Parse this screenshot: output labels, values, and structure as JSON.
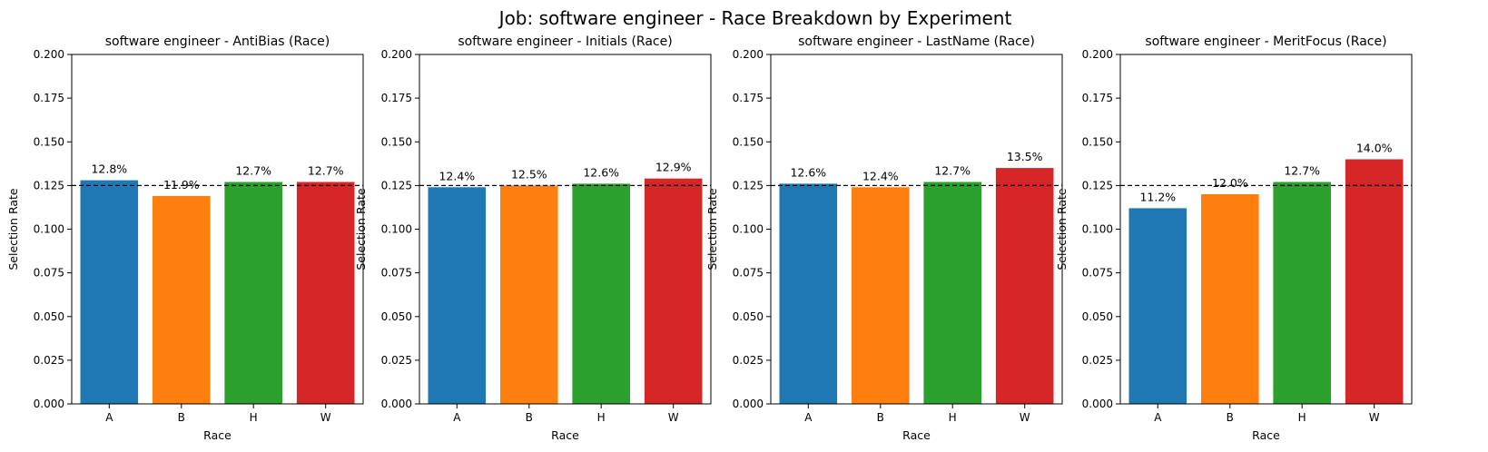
{
  "figure": {
    "suptitle": "Job: software engineer - Race Breakdown by Experiment"
  },
  "colors": {
    "A": "#1f77b4",
    "B": "#ff7f0e",
    "H": "#2ca02c",
    "W": "#d62728",
    "reference_line": "#000000"
  },
  "chart_data": [
    {
      "type": "bar",
      "title": "software engineer - AntiBias (Race)",
      "xlabel": "Race",
      "ylabel": "Selection Rate",
      "categories": [
        "A",
        "B",
        "H",
        "W"
      ],
      "values": [
        0.128,
        0.119,
        0.127,
        0.127
      ],
      "data_labels": [
        "12.8%",
        "11.9%",
        "12.7%",
        "12.7%"
      ],
      "ylim": [
        0,
        0.2
      ],
      "yticks": [
        "0.000",
        "0.025",
        "0.050",
        "0.075",
        "0.100",
        "0.125",
        "0.150",
        "0.175",
        "0.200"
      ],
      "reference_line": 0.125,
      "grid": false
    },
    {
      "type": "bar",
      "title": "software engineer - Initials (Race)",
      "xlabel": "Race",
      "ylabel": "Selection Rate",
      "categories": [
        "A",
        "B",
        "H",
        "W"
      ],
      "values": [
        0.124,
        0.125,
        0.126,
        0.129
      ],
      "data_labels": [
        "12.4%",
        "12.5%",
        "12.6%",
        "12.9%"
      ],
      "ylim": [
        0,
        0.2
      ],
      "yticks": [
        "0.000",
        "0.025",
        "0.050",
        "0.075",
        "0.100",
        "0.125",
        "0.150",
        "0.175",
        "0.200"
      ],
      "reference_line": 0.125,
      "grid": false
    },
    {
      "type": "bar",
      "title": "software engineer - LastName (Race)",
      "xlabel": "Race",
      "ylabel": "Selection Rate",
      "categories": [
        "A",
        "B",
        "H",
        "W"
      ],
      "values": [
        0.126,
        0.124,
        0.127,
        0.135
      ],
      "data_labels": [
        "12.6%",
        "12.4%",
        "12.7%",
        "13.5%"
      ],
      "ylim": [
        0,
        0.2
      ],
      "yticks": [
        "0.000",
        "0.025",
        "0.050",
        "0.075",
        "0.100",
        "0.125",
        "0.150",
        "0.175",
        "0.200"
      ],
      "reference_line": 0.125,
      "grid": false
    },
    {
      "type": "bar",
      "title": "software engineer - MeritFocus (Race)",
      "xlabel": "Race",
      "ylabel": "Selection Rate",
      "categories": [
        "A",
        "B",
        "H",
        "W"
      ],
      "values": [
        0.112,
        0.12,
        0.127,
        0.14
      ],
      "data_labels": [
        "11.2%",
        "12.0%",
        "12.7%",
        "14.0%"
      ],
      "ylim": [
        0,
        0.2
      ],
      "yticks": [
        "0.000",
        "0.025",
        "0.050",
        "0.075",
        "0.100",
        "0.125",
        "0.150",
        "0.175",
        "0.200"
      ],
      "reference_line": 0.125,
      "grid": false
    }
  ]
}
